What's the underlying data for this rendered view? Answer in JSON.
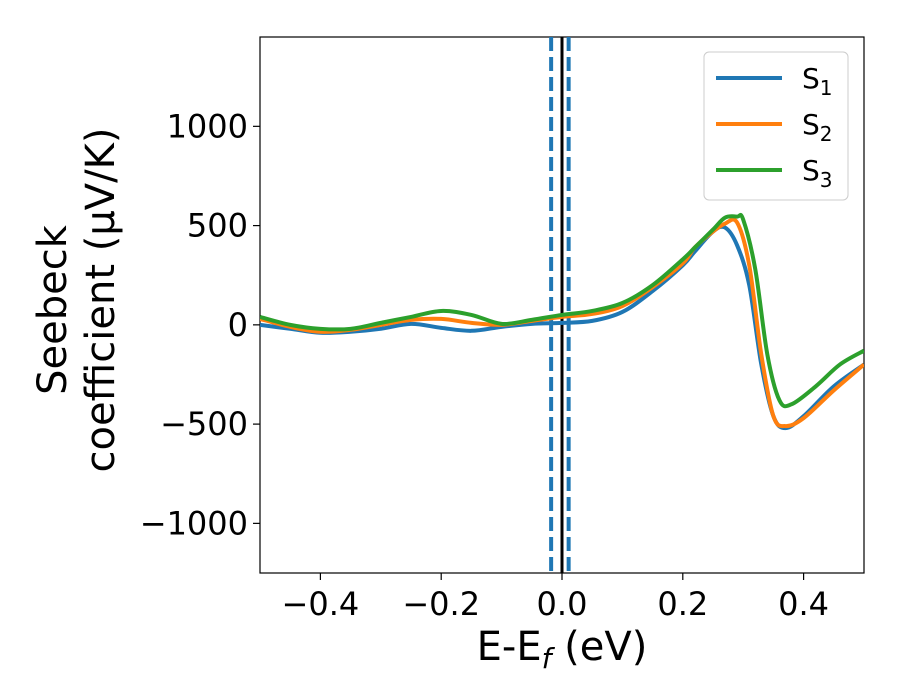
{
  "chart_data": {
    "type": "line",
    "xlabel": "E-E_f (eV)",
    "xlabel_main": "E-E",
    "xlabel_sub": "f",
    "xlabel_unit": " (eV)",
    "ylabel": "Seebeck coefficient (μV/K)",
    "ylabel_line1": "Seebeck",
    "ylabel_line2": "coefficient  (μV/K)",
    "xlim": [
      -0.5,
      0.5
    ],
    "ylim": [
      -1250,
      1450
    ],
    "xticks": [
      -0.4,
      -0.2,
      0.0,
      0.2,
      0.4
    ],
    "xtick_labels": [
      "−0.4",
      "−0.2",
      "0.0",
      "0.2",
      "0.4"
    ],
    "yticks": [
      -1000,
      -500,
      0,
      500,
      1000
    ],
    "ytick_labels": [
      "−1000",
      "−500",
      "0",
      "500",
      "1000"
    ],
    "grid": false,
    "legend_position": "top-right",
    "vlines": [
      {
        "x": -0.018,
        "style": "dashed",
        "color": "#1f77b4"
      },
      {
        "x": 0.011,
        "style": "dashed",
        "color": "#1f77b4"
      },
      {
        "x": 0.0,
        "style": "solid",
        "color": "#000000"
      }
    ],
    "series": [
      {
        "name": "S1",
        "label_main": "S",
        "label_sub": "1",
        "color": "#1f77b4",
        "x": [
          -0.5,
          -0.45,
          -0.4,
          -0.35,
          -0.3,
          -0.25,
          -0.2,
          -0.15,
          -0.1,
          -0.05,
          0.0,
          0.05,
          0.1,
          0.15,
          0.2,
          0.22,
          0.25,
          0.27,
          0.29,
          0.31,
          0.33,
          0.35,
          0.37,
          0.4,
          0.45,
          0.5
        ],
        "y": [
          0,
          -20,
          -40,
          -35,
          -20,
          5,
          -15,
          -30,
          -10,
          5,
          10,
          20,
          65,
          170,
          300,
          370,
          470,
          490,
          400,
          200,
          -200,
          -460,
          -520,
          -460,
          -310,
          -200
        ]
      },
      {
        "name": "S2",
        "label_main": "S",
        "label_sub": "2",
        "color": "#ff7f0e",
        "x": [
          -0.5,
          -0.45,
          -0.4,
          -0.35,
          -0.3,
          -0.25,
          -0.2,
          -0.15,
          -0.1,
          -0.05,
          0.0,
          0.05,
          0.1,
          0.15,
          0.2,
          0.22,
          0.25,
          0.27,
          0.29,
          0.31,
          0.33,
          0.35,
          0.37,
          0.4,
          0.45,
          0.5
        ],
        "y": [
          30,
          -10,
          -35,
          -25,
          0,
          25,
          30,
          10,
          0,
          20,
          40,
          55,
          95,
          190,
          310,
          390,
          470,
          510,
          515,
          300,
          -150,
          -460,
          -510,
          -470,
          -330,
          -200
        ]
      },
      {
        "name": "S3",
        "label_main": "S",
        "label_sub": "3",
        "color": "#2ca02c",
        "x": [
          -0.5,
          -0.45,
          -0.4,
          -0.35,
          -0.3,
          -0.25,
          -0.2,
          -0.15,
          -0.1,
          -0.05,
          0.0,
          0.05,
          0.1,
          0.15,
          0.2,
          0.22,
          0.25,
          0.27,
          0.29,
          0.3,
          0.32,
          0.34,
          0.36,
          0.38,
          0.42,
          0.46,
          0.5
        ],
        "y": [
          40,
          0,
          -20,
          -20,
          10,
          40,
          70,
          50,
          5,
          25,
          50,
          70,
          110,
          200,
          330,
          390,
          480,
          540,
          545,
          530,
          280,
          -150,
          -380,
          -400,
          -310,
          -200,
          -130
        ]
      }
    ]
  }
}
